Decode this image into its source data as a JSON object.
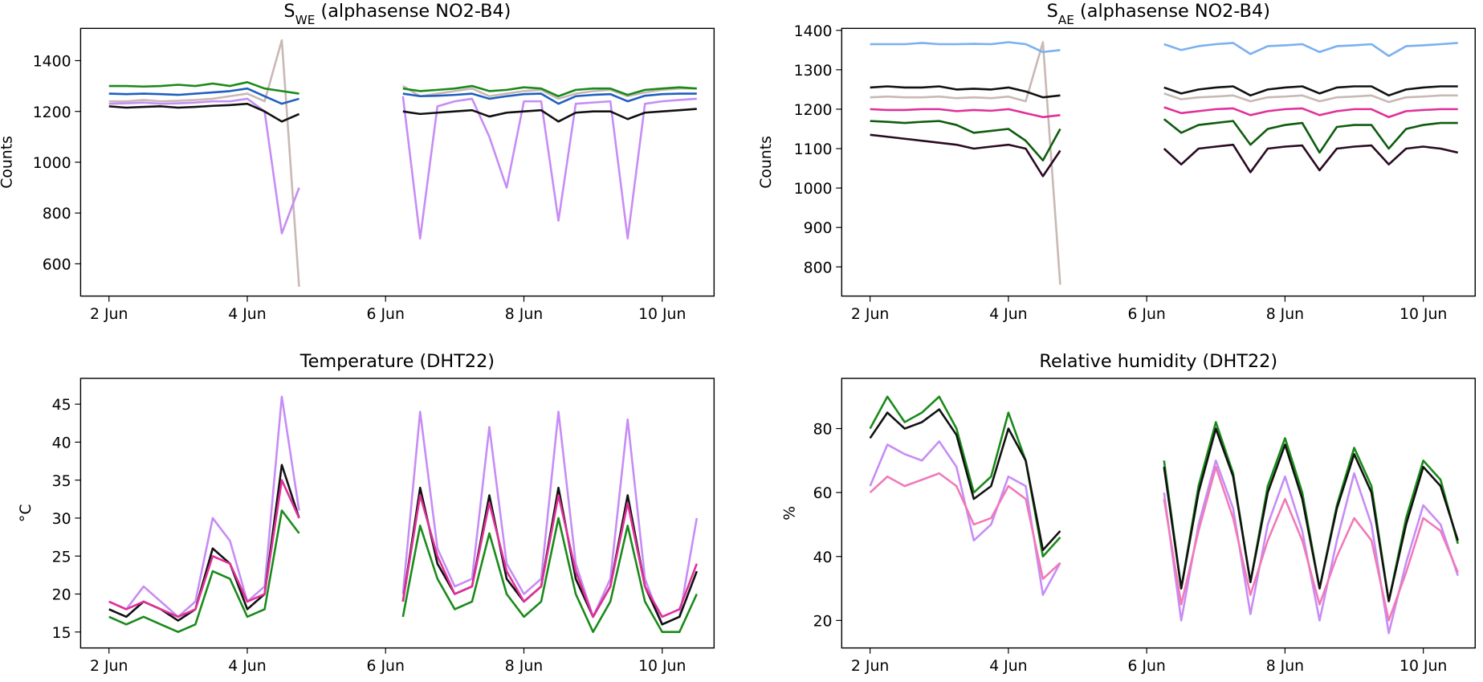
{
  "chart_data": [
    {
      "type": "line",
      "title_parts": [
        "S",
        "WE",
        " (alphasense NO2-B4)"
      ],
      "ylabel": "Counts",
      "x": [
        2,
        2.25,
        2.5,
        2.75,
        3,
        3.25,
        3.5,
        3.75,
        4,
        4.25,
        4.5,
        4.75,
        5.5,
        6.25,
        6.5,
        6.75,
        7,
        7.25,
        7.5,
        7.75,
        8,
        8.25,
        8.5,
        8.75,
        9,
        9.25,
        9.5,
        9.75,
        10,
        10.25,
        10.5
      ],
      "xlim": [
        1.59,
        10.75
      ],
      "ylim": [
        473,
        1527
      ],
      "xticks": [
        {
          "value": 2,
          "label": "2 Jun"
        },
        {
          "value": 4,
          "label": "4 Jun"
        },
        {
          "value": 6,
          "label": "6 Jun"
        },
        {
          "value": 8,
          "label": "8 Jun"
        },
        {
          "value": 10,
          "label": "10 Jun"
        }
      ],
      "yticks": [
        600,
        800,
        1000,
        1200,
        1400
      ],
      "series": [
        {
          "color": "#c9b8b4",
          "values": [
            1240,
            1240,
            1245,
            1240,
            1242,
            1245,
            1250,
            1260,
            1270,
            1240,
            1480,
            510,
            null,
            1300,
            1260,
            1270,
            1280,
            1290,
            1260,
            1270,
            1280,
            1285,
            1250,
            1270,
            1280,
            1285,
            1260,
            1275,
            1285,
            1290,
            1290
          ]
        },
        {
          "color": "#c78cf5",
          "values": [
            1230,
            1232,
            1235,
            1230,
            1232,
            1235,
            1240,
            1240,
            1250,
            1200,
            720,
            900,
            null,
            1260,
            700,
            1220,
            1240,
            1250,
            1100,
            900,
            1240,
            1240,
            770,
            1230,
            1235,
            1240,
            700,
            1230,
            1240,
            1245,
            1250
          ]
        },
        {
          "color": "#1a8a1a",
          "values": [
            1300,
            1300,
            1298,
            1300,
            1305,
            1300,
            1310,
            1300,
            1315,
            1290,
            1280,
            1270,
            null,
            1290,
            1280,
            1285,
            1290,
            1300,
            1280,
            1285,
            1295,
            1290,
            1260,
            1285,
            1290,
            1290,
            1265,
            1285,
            1290,
            1295,
            1290
          ]
        },
        {
          "color": "#1f5fc0",
          "values": [
            1270,
            1268,
            1270,
            1268,
            1265,
            1270,
            1275,
            1280,
            1290,
            1260,
            1230,
            1250,
            null,
            1270,
            1260,
            1262,
            1265,
            1270,
            1250,
            1260,
            1268,
            1270,
            1230,
            1260,
            1265,
            1268,
            1240,
            1262,
            1268,
            1270,
            1270
          ]
        },
        {
          "color": "#111111",
          "values": [
            1220,
            1215,
            1218,
            1220,
            1215,
            1218,
            1222,
            1225,
            1230,
            1200,
            1160,
            1190,
            null,
            1200,
            1190,
            1195,
            1200,
            1205,
            1180,
            1195,
            1200,
            1205,
            1160,
            1195,
            1200,
            1200,
            1170,
            1195,
            1200,
            1205,
            1210
          ]
        }
      ]
    },
    {
      "type": "line",
      "title_parts": [
        "S",
        "AE",
        " (alphasense NO2-B4)"
      ],
      "ylabel": "Counts",
      "x": [
        2,
        2.25,
        2.5,
        2.75,
        3,
        3.25,
        3.5,
        3.75,
        4,
        4.25,
        4.5,
        4.75,
        5.5,
        6.25,
        6.5,
        6.75,
        7,
        7.25,
        7.5,
        7.75,
        8,
        8.25,
        8.5,
        8.75,
        9,
        9.25,
        9.5,
        9.75,
        10,
        10.25,
        10.5
      ],
      "xlim": [
        1.59,
        10.75
      ],
      "ylim": [
        726,
        1405
      ],
      "xticks": [
        {
          "value": 2,
          "label": "2 Jun"
        },
        {
          "value": 4,
          "label": "4 Jun"
        },
        {
          "value": 6,
          "label": "6 Jun"
        },
        {
          "value": 8,
          "label": "8 Jun"
        },
        {
          "value": 10,
          "label": "10 Jun"
        }
      ],
      "yticks": [
        800,
        900,
        1000,
        1100,
        1200,
        1300,
        1400
      ],
      "series": [
        {
          "color": "#c9b8b4",
          "values": [
            1230,
            1232,
            1230,
            1230,
            1232,
            1228,
            1230,
            1228,
            1232,
            1220,
            1370,
            755,
            null,
            1240,
            1225,
            1230,
            1232,
            1235,
            1220,
            1230,
            1232,
            1235,
            1220,
            1230,
            1232,
            1235,
            1218,
            1230,
            1232,
            1235,
            1235
          ]
        },
        {
          "color": "#7ab0f0",
          "values": [
            1365,
            1365,
            1365,
            1368,
            1365,
            1365,
            1366,
            1365,
            1370,
            1365,
            1345,
            1350,
            null,
            1365,
            1350,
            1360,
            1365,
            1368,
            1340,
            1360,
            1362,
            1365,
            1345,
            1360,
            1362,
            1365,
            1335,
            1360,
            1362,
            1365,
            1368
          ]
        },
        {
          "color": "#111111",
          "values": [
            1255,
            1258,
            1255,
            1255,
            1258,
            1250,
            1252,
            1250,
            1255,
            1245,
            1230,
            1235,
            null,
            1255,
            1240,
            1250,
            1255,
            1258,
            1235,
            1250,
            1255,
            1258,
            1240,
            1255,
            1258,
            1258,
            1235,
            1250,
            1255,
            1258,
            1258
          ]
        },
        {
          "color": "#e0309a",
          "values": [
            1200,
            1198,
            1198,
            1200,
            1200,
            1195,
            1198,
            1196,
            1200,
            1190,
            1180,
            1185,
            null,
            1205,
            1190,
            1195,
            1200,
            1202,
            1185,
            1195,
            1200,
            1202,
            1185,
            1195,
            1200,
            1200,
            1180,
            1195,
            1198,
            1200,
            1200
          ]
        },
        {
          "color": "#0f5c0f",
          "values": [
            1170,
            1168,
            1165,
            1168,
            1170,
            1160,
            1140,
            1145,
            1150,
            1120,
            1070,
            1150,
            null,
            1175,
            1140,
            1160,
            1165,
            1170,
            1110,
            1150,
            1160,
            1165,
            1090,
            1155,
            1160,
            1160,
            1100,
            1150,
            1160,
            1165,
            1165
          ]
        },
        {
          "color": "#2a0a22",
          "values": [
            1135,
            1130,
            1125,
            1120,
            1115,
            1110,
            1100,
            1105,
            1110,
            1100,
            1030,
            1095,
            null,
            1100,
            1060,
            1100,
            1105,
            1110,
            1040,
            1100,
            1105,
            1108,
            1045,
            1100,
            1105,
            1108,
            1060,
            1100,
            1105,
            1100,
            1090
          ]
        }
      ]
    },
    {
      "type": "line",
      "title": "Temperature (DHT22)",
      "ylabel": "°C",
      "x": [
        2,
        2.25,
        2.5,
        2.75,
        3,
        3.25,
        3.5,
        3.75,
        4,
        4.25,
        4.5,
        4.75,
        5.5,
        6.25,
        6.5,
        6.75,
        7,
        7.25,
        7.5,
        7.75,
        8,
        8.25,
        8.5,
        8.75,
        9,
        9.25,
        9.5,
        9.75,
        10,
        10.25,
        10.5
      ],
      "xlim": [
        1.59,
        10.75
      ],
      "ylim": [
        12.9,
        48.4
      ],
      "xticks": [
        {
          "value": 2,
          "label": "2 Jun"
        },
        {
          "value": 4,
          "label": "4 Jun"
        },
        {
          "value": 6,
          "label": "6 Jun"
        },
        {
          "value": 8,
          "label": "8 Jun"
        },
        {
          "value": 10,
          "label": "10 Jun"
        }
      ],
      "yticks": [
        15,
        20,
        25,
        30,
        35,
        40,
        45
      ],
      "series": [
        {
          "color": "#c78cf5",
          "values": [
            19,
            18,
            21,
            19,
            17,
            19,
            30,
            27,
            19,
            21,
            46,
            31,
            null,
            20,
            44,
            26,
            21,
            22,
            42,
            24,
            20,
            22,
            44,
            24,
            17,
            22,
            43,
            22,
            16,
            17,
            30
          ]
        },
        {
          "color": "#1a8a1a",
          "values": [
            17,
            16,
            17,
            16,
            15,
            16,
            23,
            22,
            17,
            18,
            31,
            28,
            null,
            17,
            29,
            22,
            18,
            19,
            28,
            20,
            17,
            19,
            30,
            20,
            15,
            19,
            29,
            19,
            15,
            15,
            20
          ]
        },
        {
          "color": "#111111",
          "values": [
            18,
            17,
            19,
            18,
            16.5,
            18,
            26,
            24,
            18,
            20,
            37,
            30,
            null,
            19,
            34,
            24,
            20,
            21,
            33,
            22,
            19,
            21,
            34,
            22,
            17,
            21,
            33,
            21,
            16,
            17,
            23
          ]
        },
        {
          "color": "#e0309a",
          "values": [
            19,
            18,
            19,
            18,
            17,
            18,
            25,
            24,
            19,
            20,
            35,
            30,
            null,
            19,
            33,
            25,
            20,
            21,
            32,
            23,
            19,
            21,
            33,
            23,
            17,
            21,
            32,
            21,
            17,
            18,
            24
          ]
        }
      ]
    },
    {
      "type": "line",
      "title": "Relative humidity (DHT22)",
      "ylabel": "%",
      "x": [
        2,
        2.25,
        2.5,
        2.75,
        3,
        3.25,
        3.5,
        3.75,
        4,
        4.25,
        4.5,
        4.75,
        5.5,
        6.25,
        6.5,
        6.75,
        7,
        7.25,
        7.5,
        7.75,
        8,
        8.25,
        8.5,
        8.75,
        9,
        9.25,
        9.5,
        9.75,
        10,
        10.25,
        10.5
      ],
      "xlim": [
        1.59,
        10.75
      ],
      "ylim": [
        11.4,
        95.7
      ],
      "xticks": [
        {
          "value": 2,
          "label": "2 Jun"
        },
        {
          "value": 4,
          "label": "4 Jun"
        },
        {
          "value": 6,
          "label": "6 Jun"
        },
        {
          "value": 8,
          "label": "8 Jun"
        },
        {
          "value": 10,
          "label": "10 Jun"
        }
      ],
      "yticks": [
        20,
        40,
        60,
        80
      ],
      "series": [
        {
          "color": "#1a8a1a",
          "values": [
            80,
            90,
            82,
            85,
            90,
            80,
            60,
            65,
            85,
            70,
            40,
            46,
            null,
            70,
            30,
            62,
            82,
            66,
            32,
            62,
            77,
            60,
            30,
            56,
            74,
            62,
            26,
            52,
            70,
            64,
            44
          ]
        },
        {
          "color": "#111111",
          "values": [
            77,
            85,
            80,
            82,
            86,
            78,
            58,
            62,
            80,
            70,
            42,
            48,
            null,
            68,
            30,
            60,
            80,
            65,
            32,
            60,
            75,
            58,
            30,
            55,
            72,
            60,
            26,
            50,
            68,
            62,
            45
          ]
        },
        {
          "color": "#c78cf5",
          "values": [
            62,
            75,
            72,
            70,
            76,
            68,
            45,
            50,
            65,
            62,
            28,
            38,
            null,
            60,
            20,
            50,
            70,
            55,
            22,
            50,
            65,
            48,
            20,
            45,
            66,
            50,
            16,
            38,
            56,
            50,
            34
          ]
        },
        {
          "color": "#f07ab8",
          "values": [
            60,
            65,
            62,
            64,
            66,
            62,
            50,
            52,
            62,
            58,
            33,
            38,
            null,
            58,
            25,
            48,
            68,
            52,
            28,
            45,
            58,
            45,
            25,
            40,
            52,
            45,
            20,
            35,
            52,
            48,
            35
          ]
        }
      ]
    }
  ]
}
